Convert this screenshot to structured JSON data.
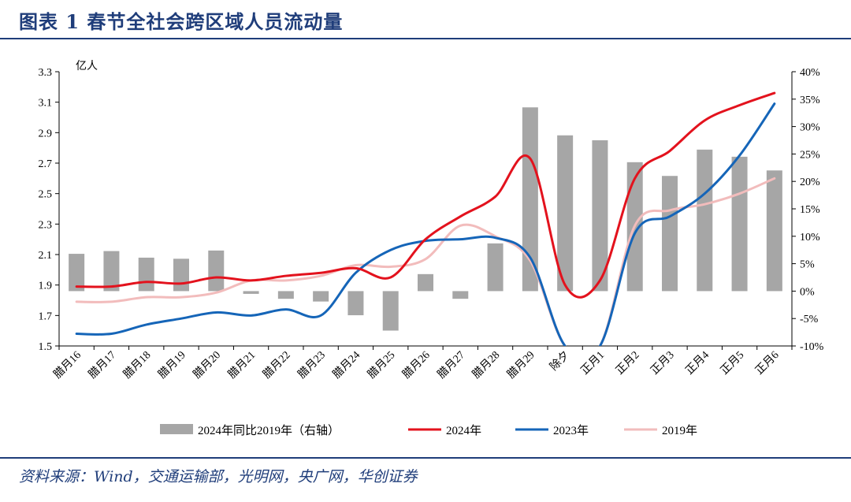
{
  "header": {
    "title": "图表 1   春节全社会跨区域人员流动量"
  },
  "footer": {
    "source": "资料来源：Wind，交通运输部，光明网，央广网，华创证券"
  },
  "colors": {
    "bar": "#a6a6a6",
    "s2024": "#e3121d",
    "s2023": "#1565b8",
    "s2019": "#f2bcbc",
    "rule": "#1f3d7a"
  },
  "chart_data": {
    "type": "bar+line",
    "left_axis": {
      "unit": "亿人",
      "ylim": [
        1.5,
        3.3
      ],
      "ticks": [
        "1.5",
        "1.7",
        "1.9",
        "2.1",
        "2.3",
        "2.5",
        "2.7",
        "2.9",
        "3.1",
        "3.3"
      ]
    },
    "right_axis": {
      "ylim": [
        -10,
        40
      ],
      "ticks": [
        "-10%",
        "-5%",
        "0%",
        "5%",
        "10%",
        "15%",
        "20%",
        "25%",
        "30%",
        "35%",
        "40%"
      ]
    },
    "categories": [
      "腊月16",
      "腊月17",
      "腊月18",
      "腊月19",
      "腊月20",
      "腊月21",
      "腊月22",
      "腊月23",
      "腊月24",
      "腊月25",
      "腊月26",
      "腊月27",
      "腊月28",
      "腊月29",
      "除夕",
      "正月1",
      "正月2",
      "正月3",
      "正月4",
      "正月5",
      "正月6"
    ],
    "bars": {
      "name": "2024年同比2019年（右轴）",
      "axis": "right",
      "values": [
        6.8,
        7.3,
        6.1,
        5.9,
        7.4,
        -0.5,
        -1.4,
        -1.9,
        -4.4,
        -7.2,
        3.1,
        -1.4,
        8.7,
        33.5,
        28.4,
        27.5,
        23.5,
        21.0,
        25.8,
        24.5,
        22.0
      ]
    },
    "series": [
      {
        "name": "2024年",
        "axis": "left",
        "values": [
          1.89,
          1.89,
          1.92,
          1.91,
          1.95,
          1.93,
          1.96,
          1.98,
          2.01,
          1.95,
          2.2,
          2.35,
          2.48,
          2.73,
          1.9,
          1.93,
          2.6,
          2.78,
          2.98,
          3.08,
          3.16
        ]
      },
      {
        "name": "2023年",
        "axis": "left",
        "values": [
          1.58,
          1.58,
          1.64,
          1.68,
          1.72,
          1.7,
          1.74,
          1.7,
          1.98,
          2.13,
          2.19,
          2.2,
          2.21,
          2.08,
          1.5,
          1.5,
          2.24,
          2.35,
          2.5,
          2.75,
          3.09
        ]
      },
      {
        "name": "2019年",
        "axis": "left",
        "values": [
          1.79,
          1.79,
          1.82,
          1.82,
          1.85,
          1.93,
          1.93,
          1.96,
          2.03,
          2.02,
          2.07,
          2.29,
          2.22,
          2.06,
          1.5,
          1.5,
          2.29,
          2.39,
          2.43,
          2.5,
          2.6
        ]
      }
    ],
    "legend": {
      "position": "bottom",
      "entries": [
        "2024年同比2019年（右轴）",
        "2024年",
        "2023年",
        "2019年"
      ]
    }
  }
}
